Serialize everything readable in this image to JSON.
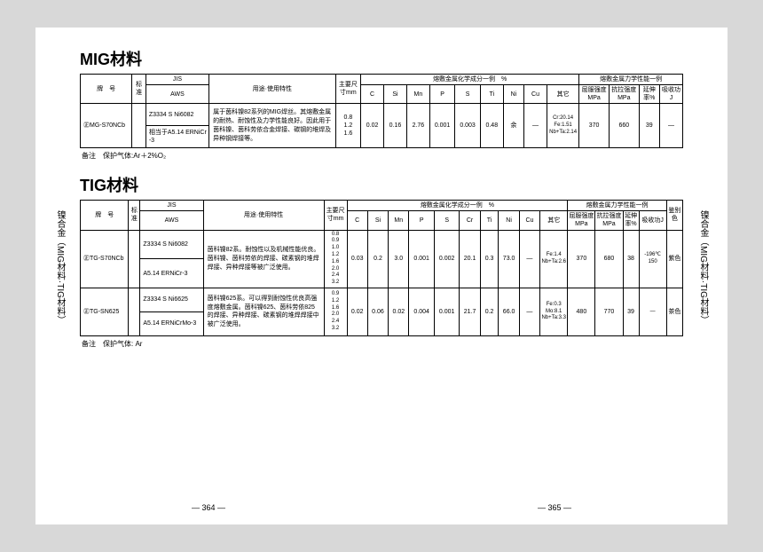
{
  "mig": {
    "title": "MIG材料",
    "headers": {
      "grade": "牌　号",
      "std": "标准",
      "jis": "JIS",
      "aws": "AWS",
      "usage": "用途·使用特性",
      "size": "主要尺寸mm",
      "comp_group": "熔敷金属化学成分一例　%",
      "mech_group": "熔敷金属力学性能一例",
      "C": "C",
      "Si": "Si",
      "Mn": "Mn",
      "P": "P",
      "S": "S",
      "Ti": "Ti",
      "Ni": "Ni",
      "Cu": "Cu",
      "Other": "其它",
      "ys": "屈服强度MPa",
      "ts": "抗拉强度MPa",
      "el": "延伸率%",
      "imp": "吸收功J"
    },
    "row": {
      "grade": "㊣MG-S70NCb",
      "jis": "Z3334 S Ni6082",
      "aws": "相当于A5.14 ERNiCr-3",
      "desc": "属于茵科镍82系列的MIG焊丝。其熔敷金属的耐热、耐蚀性及力学性能良好。因此用于茵科镍、茵科劳依合金焊接、碳钢的堆焊及异种钢焊接等。",
      "size": "0.8\n1.2\n1.6",
      "C": "0.02",
      "Si": "0.16",
      "Mn": "2.76",
      "P": "0.001",
      "S": "0.003",
      "Ti": "0.48",
      "Ni": "余",
      "Cu": "—",
      "Other": "Cr:20.14\nFe:1.51\nNb+Ta:2.14",
      "ys": "370",
      "ts": "660",
      "el": "39",
      "imp": "—"
    },
    "note": "备注　保护气体:Ar＋2%O₂"
  },
  "tig": {
    "title": "TIG材料",
    "headers": {
      "grade": "牌　号",
      "std": "标准",
      "jis": "JIS",
      "aws": "AWS",
      "usage": "用途·使用特性",
      "size": "主要尺寸mm",
      "comp_group": "熔敷金属化学成分一例　%",
      "mech_group": "熔敷金属力学性能一例",
      "C": "C",
      "Si": "Si",
      "Mn": "Mn",
      "P": "P",
      "S": "S",
      "Cr": "Cr",
      "Ti": "Ti",
      "Ni": "Ni",
      "Cu": "Cu",
      "Other": "其它",
      "ys": "屈服强度MPa",
      "ts": "抗拉强度MPa",
      "el": "延伸率%",
      "imp": "吸收功J",
      "color": "鉴别色"
    },
    "rows": [
      {
        "grade": "㊣TG-S70NCb",
        "jis": "Z3334 S Ni6082",
        "aws": "A5.14 ERNiCr-3",
        "desc": "茵科镍82系。耐蚀性以及机械性能优良。茵科镍、茵科劳依的焊接、碳素钢的堆焊焊接、异种焊接等被广泛使用。",
        "size": "0.8\n0.9\n1.0\n1.2\n1.6\n2.0\n2.4\n3.2",
        "C": "0.03",
        "Si": "0.2",
        "Mn": "3.0",
        "P": "0.001",
        "S": "0.002",
        "Cr": "20.1",
        "Ti": "0.3",
        "Ni": "73.0",
        "Cu": "—",
        "Other": "Fe:1.4\nNb+Ta:2.6",
        "ys": "370",
        "ts": "680",
        "el": "38",
        "imp": "-196℃\n150",
        "color": "紫色"
      },
      {
        "grade": "㊣TG-SN625",
        "jis": "Z3334 S Ni6625",
        "aws": "A5.14 ERNiCrMo-3",
        "desc": "茵科镍625系。可以得到耐蚀性优良高强度熔敷金属。茵科镍625、茵科劳依825的焊接、异种焊接、碳素钢的堆焊焊接中被广泛使用。",
        "size": "0.9\n1.2\n1.6\n2.0\n2.4\n3.2",
        "C": "0.02",
        "Si": "0.06",
        "Mn": "0.02",
        "P": "0.004",
        "S": "0.001",
        "Cr": "21.7",
        "Ti": "0.2",
        "Ni": "66.0",
        "Cu": "—",
        "Other": "Fe:0.3\nMo:8.1\nNb+Ta:3.3",
        "ys": "480",
        "ts": "770",
        "el": "39",
        "imp": "—",
        "color": "茶色"
      }
    ],
    "note": "备注　保护气体: Ar"
  },
  "side_text": "镍合金（MIG材料·TIG材料）",
  "pages": {
    "left": "— 364 —",
    "right": "— 365 —"
  }
}
